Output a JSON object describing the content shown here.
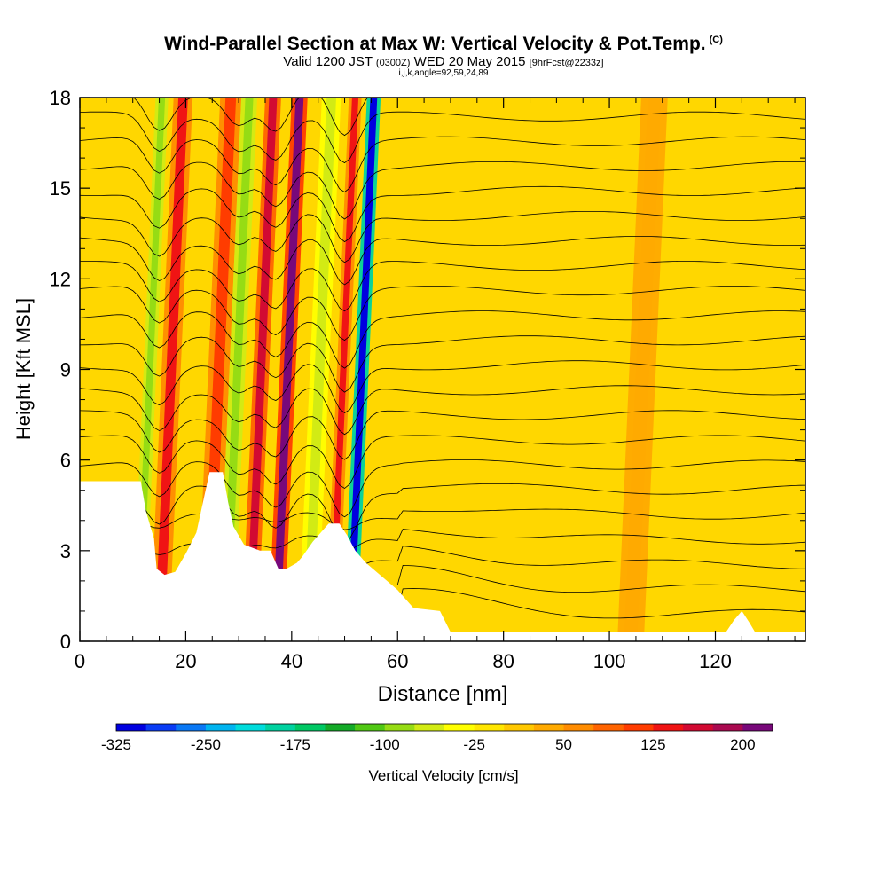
{
  "title": {
    "main": "Wind-Parallel Section at Max W: Vertical Velocity & Pot.Temp.",
    "copyright": "(C)",
    "valid": "Valid 1200 JST",
    "utc": "(0300Z)",
    "date": "WED 20 May 2015",
    "forecast": "[9hrFcst@2233z]",
    "indices": "i,j,k,angle=92,59,24,89"
  },
  "chart_data": {
    "type": "heatmap",
    "xlabel": "Distance [nm]",
    "ylabel": "Height [Kft MSL]",
    "xlim": [
      0,
      137
    ],
    "ylim": [
      0,
      18
    ],
    "x_ticks": [
      "0",
      "20",
      "40",
      "60",
      "80",
      "100",
      "120"
    ],
    "y_ticks": [
      "0",
      "3",
      "6",
      "9",
      "12",
      "15",
      "18"
    ],
    "colorbar": {
      "label": "Vertical Velocity [cm/s]",
      "range": [
        -325,
        225
      ],
      "tick_labels": [
        "-325",
        "-250",
        "-175",
        "-100",
        "-25",
        "50",
        "125",
        "200"
      ],
      "colors": [
        "#0000e0",
        "#0a3cf5",
        "#0a78f5",
        "#00b4f0",
        "#00dcdc",
        "#00d2a0",
        "#00c864",
        "#14aa28",
        "#50c814",
        "#96dc14",
        "#d2eb14",
        "#ffff00",
        "#ffe600",
        "#ffc800",
        "#ffaa00",
        "#ff8c00",
        "#ff6400",
        "#ff3c00",
        "#f01414",
        "#d20a32",
        "#aa0a50",
        "#78087a"
      ]
    },
    "terrain": [
      [
        0,
        5.3
      ],
      [
        11.5,
        5.3
      ],
      [
        12.5,
        4.3
      ],
      [
        14,
        3.4
      ],
      [
        14.5,
        2.4
      ],
      [
        16,
        2.2
      ],
      [
        18,
        2.3
      ],
      [
        20,
        2.9
      ],
      [
        22,
        3.6
      ],
      [
        23.5,
        4.8
      ],
      [
        24.5,
        5.6
      ],
      [
        27,
        5.6
      ],
      [
        28,
        4.6
      ],
      [
        29,
        3.8
      ],
      [
        31,
        3.2
      ],
      [
        34,
        3.0
      ],
      [
        36,
        3.0
      ],
      [
        37.5,
        2.4
      ],
      [
        39,
        2.4
      ],
      [
        41,
        2.6
      ],
      [
        42,
        2.8
      ],
      [
        44,
        3.3
      ],
      [
        45.5,
        3.6
      ],
      [
        47,
        3.9
      ],
      [
        49,
        3.9
      ],
      [
        50.5,
        3.5
      ],
      [
        52,
        3.0
      ],
      [
        54,
        2.6
      ],
      [
        56,
        2.3
      ],
      [
        58,
        2.0
      ],
      [
        60,
        1.7
      ],
      [
        62,
        1.3
      ],
      [
        63,
        1.1
      ],
      [
        68,
        1.0
      ],
      [
        70,
        0.3
      ],
      [
        100,
        0.3
      ],
      [
        122,
        0.3
      ],
      [
        123.5,
        0.7
      ],
      [
        125,
        1.0
      ],
      [
        126.5,
        0.6
      ],
      [
        127.5,
        0.3
      ],
      [
        137,
        0.3
      ]
    ],
    "bands": [
      {
        "x": 11,
        "w": 1.2,
        "w_cms": -100
      },
      {
        "x": 15,
        "w": 1.8,
        "w_cms": 125
      },
      {
        "x": 24,
        "w": 2.0,
        "w_cms": 100
      },
      {
        "x": 27.5,
        "w": 1.5,
        "w_cms": -100
      },
      {
        "x": 32,
        "w": 1.5,
        "w_cms": 150
      },
      {
        "x": 37,
        "w": 1.5,
        "w_cms": 200
      },
      {
        "x": 43,
        "w": 1.8,
        "w_cms": -60
      },
      {
        "x": 47.5,
        "w": 1.2,
        "w_cms": 125
      },
      {
        "x": 51,
        "w": 1.3,
        "w_cms": -325
      },
      {
        "x": 104,
        "w": 2.5,
        "w_cms": 50
      }
    ],
    "isentropes_K": [
      28,
      29,
      30,
      31,
      32,
      33,
      34,
      35,
      36,
      37,
      38,
      39,
      40,
      41,
      42,
      43,
      44,
      45,
      46,
      47,
      48,
      49
    ]
  }
}
